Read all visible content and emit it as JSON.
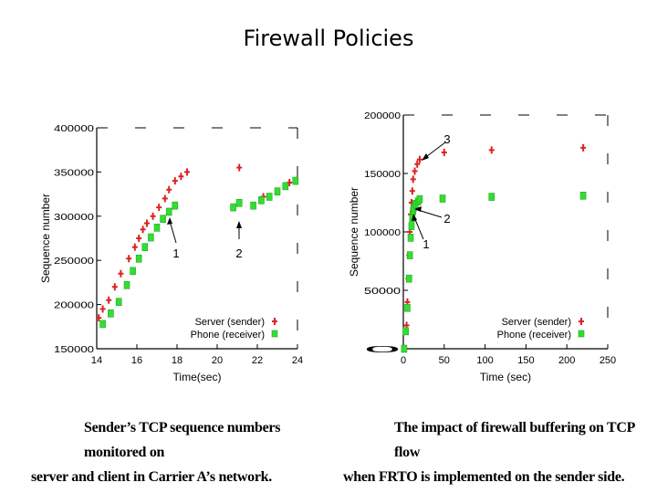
{
  "slide": {
    "title": "Firewall Policies"
  },
  "captions": {
    "left": {
      "line1": "Sender’s TCP sequence numbers monitored on",
      "line2": "server and client in Carrier A’s network."
    },
    "right": {
      "line1": "The impact of firewall buffering on TCP flow",
      "line2": "when FRTO is implemented on the sender side."
    }
  },
  "colors": {
    "server": "#dd2222",
    "phone": "#33dd33",
    "axis": "#000000"
  },
  "chart_data": [
    {
      "type": "scatter",
      "title": "",
      "xlabel": "Time(sec)",
      "ylabel": "Sequence number",
      "xlim": [
        14,
        24
      ],
      "ylim": [
        150000,
        400000
      ],
      "xticks": [
        14,
        16,
        18,
        20,
        22,
        24
      ],
      "yticks": [
        150000,
        200000,
        250000,
        300000,
        350000,
        400000
      ],
      "xtick_labels": [
        "14",
        "16",
        "18",
        "20",
        "22",
        "24"
      ],
      "ytick_labels": [
        "150000",
        "200000",
        "250000",
        "300000",
        "350000",
        "400000"
      ],
      "legend": [
        "Server (sender)",
        "Phone (receiver)"
      ],
      "annotations": [
        "1",
        "2"
      ],
      "series": [
        {
          "name": "Server (sender)",
          "marker": "plus",
          "x": [
            14.1,
            14.3,
            14.6,
            14.9,
            15.2,
            15.6,
            15.9,
            16.1,
            16.3,
            16.5,
            16.8,
            17.1,
            17.4,
            17.6,
            17.9,
            18.2,
            18.5,
            21.1,
            22.3,
            23.6
          ],
          "y": [
            185000,
            195000,
            205000,
            220000,
            235000,
            252000,
            265000,
            275000,
            285000,
            292000,
            300000,
            310000,
            320000,
            330000,
            340000,
            345000,
            350000,
            355000,
            322000,
            338000
          ]
        },
        {
          "name": "Phone (receiver)",
          "marker": "square",
          "x": [
            14.3,
            14.7,
            15.1,
            15.5,
            15.8,
            16.1,
            16.4,
            16.7,
            17.0,
            17.3,
            17.6,
            17.9,
            20.8,
            21.1,
            21.8,
            22.2,
            22.6,
            23.0,
            23.4,
            23.9
          ],
          "y": [
            178000,
            190000,
            203000,
            222000,
            238000,
            252000,
            265000,
            276000,
            287000,
            297000,
            305000,
            312000,
            310000,
            315000,
            312000,
            318000,
            322000,
            328000,
            334000,
            340000
          ]
        }
      ]
    },
    {
      "type": "scatter",
      "title": "",
      "xlabel": "Time (sec)",
      "ylabel": "Sequence number",
      "xlim": [
        0,
        250
      ],
      "ylim": [
        0,
        200000
      ],
      "xticks": [
        0,
        50,
        100,
        150,
        200,
        250
      ],
      "yticks": [
        0,
        50000,
        100000,
        150000,
        200000
      ],
      "xtick_labels": [
        "0",
        "50",
        "100",
        "150",
        "200",
        "250"
      ],
      "ytick_labels": [
        "0",
        "50000",
        "100000",
        "150000",
        "200000"
      ],
      "legend": [
        "Server (sender)",
        "Phone (receiver)"
      ],
      "annotations": [
        "3",
        "2",
        "1"
      ],
      "series": [
        {
          "name": "Server (sender)",
          "marker": "plus",
          "x": [
            2,
            4,
            5,
            6,
            7,
            8,
            9,
            10,
            11,
            12,
            14,
            17,
            20,
            50,
            108,
            220
          ],
          "y": [
            0,
            20000,
            40000,
            60000,
            80000,
            100000,
            115000,
            125000,
            135000,
            145000,
            152000,
            158000,
            162000,
            168000,
            170000,
            172000
          ]
        },
        {
          "name": "Phone (receiver)",
          "marker": "square",
          "x": [
            1,
            3,
            5,
            7,
            8,
            9,
            10,
            11,
            12,
            13,
            15,
            18,
            20,
            48,
            108,
            220
          ],
          "y": [
            0,
            15000,
            35000,
            60000,
            80000,
            95000,
            105000,
            112000,
            118000,
            121000,
            124000,
            126000,
            128000,
            128500,
            130000,
            131000
          ]
        }
      ]
    }
  ]
}
